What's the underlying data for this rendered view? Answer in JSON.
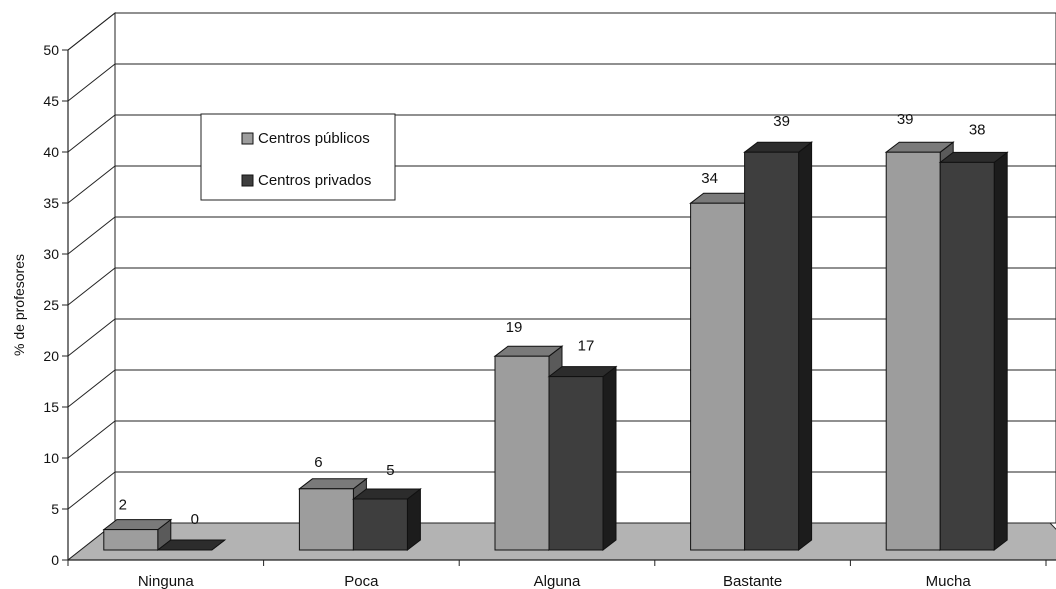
{
  "chart_data": {
    "type": "bar",
    "title": "",
    "xlabel": "",
    "ylabel": "% de profesores",
    "ylim": [
      0,
      50
    ],
    "yticks": [
      0,
      5,
      10,
      15,
      20,
      25,
      30,
      35,
      40,
      45,
      50
    ],
    "categories": [
      "Ninguna",
      "Poca",
      "Alguna",
      "Bastante",
      "Mucha"
    ],
    "series": [
      {
        "name": "Centros públicos",
        "values": [
          2,
          6,
          19,
          34,
          39
        ]
      },
      {
        "name": "Centros privados",
        "values": [
          0,
          5,
          17,
          39,
          38
        ]
      }
    ],
    "grid": true,
    "legend_position": "top-left",
    "style": "3d-bar",
    "colors": {
      "public_front": "#9d9d9d",
      "public_top": "#7a7a7a",
      "public_side": "#5a5a5a",
      "private_front": "#3e3e3e",
      "private_top": "#2c2c2c",
      "private_side": "#1c1c1c",
      "floor": "#b3b3b3",
      "wall": "#ffffff",
      "grid": "#222222"
    }
  }
}
